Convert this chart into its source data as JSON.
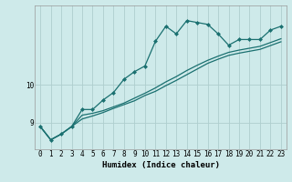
{
  "xlabel": "Humidex (Indice chaleur)",
  "background_color": "#ceeaea",
  "grid_color": "#aecece",
  "line_color": "#1a7070",
  "x_values": [
    0,
    1,
    2,
    3,
    4,
    5,
    6,
    7,
    8,
    9,
    10,
    11,
    12,
    13,
    14,
    15,
    16,
    17,
    18,
    19,
    20,
    21,
    22,
    23
  ],
  "line1_y": [
    8.9,
    8.55,
    8.7,
    8.9,
    9.35,
    9.35,
    9.6,
    9.8,
    10.15,
    10.35,
    10.5,
    11.15,
    11.55,
    11.35,
    11.7,
    11.65,
    11.6,
    11.35,
    11.05,
    11.2,
    11.2,
    11.2,
    11.45,
    11.55
  ],
  "line2_y": [
    8.9,
    8.55,
    8.7,
    8.9,
    9.2,
    9.25,
    9.32,
    9.42,
    9.52,
    9.65,
    9.78,
    9.92,
    10.08,
    10.22,
    10.38,
    10.52,
    10.65,
    10.76,
    10.86,
    10.92,
    10.97,
    11.02,
    11.12,
    11.22
  ],
  "line3_y": [
    8.9,
    8.55,
    8.7,
    8.9,
    9.1,
    9.18,
    9.27,
    9.38,
    9.48,
    9.58,
    9.72,
    9.83,
    9.98,
    10.12,
    10.27,
    10.42,
    10.57,
    10.68,
    10.78,
    10.84,
    10.89,
    10.94,
    11.04,
    11.14
  ],
  "ylim": [
    8.3,
    12.1
  ],
  "xlim": [
    -0.5,
    23.5
  ],
  "yticks": [
    9,
    10
  ],
  "ytick_labels": [
    "9",
    "10"
  ],
  "xticks": [
    0,
    1,
    2,
    3,
    4,
    5,
    6,
    7,
    8,
    9,
    10,
    11,
    12,
    13,
    14,
    15,
    16,
    17,
    18,
    19,
    20,
    21,
    22,
    23
  ],
  "tick_fontsize": 5.5,
  "xlabel_fontsize": 6.5,
  "marker": "D",
  "marker_size": 2.0,
  "linewidth": 0.9
}
